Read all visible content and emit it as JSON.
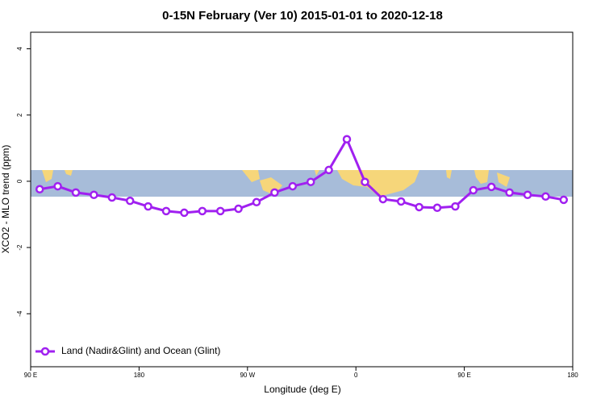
{
  "chart_data": {
    "type": "line",
    "title": "0-15N February (Ver 10)   2015-01-01 to 2020-12-18",
    "x_label": "Longitude (deg E)",
    "y_label": "XCO2 - MLO trend (ppm)",
    "x": [
      97.5,
      112.5,
      127.5,
      142.5,
      157.5,
      172.5,
      187.5,
      202.5,
      217.5,
      232.5,
      247.5,
      262.5,
      277.5,
      292.5,
      307.5,
      322.5,
      337.5,
      352.5,
      367.5,
      382.5,
      397.5,
      412.5,
      427.5,
      442.5,
      457.5,
      472.5,
      487.5,
      502.5,
      517.5,
      532.5
    ],
    "series": [
      {
        "name": "Land (Nadir&Glint) and Ocean (Glint)",
        "color": "#a020f0",
        "values": [
          -0.24,
          -0.15,
          -0.34,
          -0.41,
          -0.49,
          -0.59,
          -0.76,
          -0.9,
          -0.95,
          -0.9,
          -0.9,
          -0.83,
          -0.63,
          -0.34,
          -0.15,
          -0.02,
          0.34,
          1.27,
          -0.02,
          -0.54,
          -0.61,
          -0.78,
          -0.8,
          -0.76,
          -0.27,
          -0.17,
          -0.34,
          -0.41,
          -0.46,
          -0.56
        ]
      }
    ],
    "xlim": [
      90,
      540
    ],
    "xticks": [
      {
        "value": 90,
        "label": "90 E"
      },
      {
        "value": 180,
        "label": "180"
      },
      {
        "value": 270,
        "label": "90 W"
      },
      {
        "value": 360,
        "label": "0"
      },
      {
        "value": 450,
        "label": "90 E"
      },
      {
        "value": 540,
        "label": "180"
      }
    ],
    "ylim": [
      -5.6,
      4.5
    ],
    "yticks": [
      -4,
      -2,
      0,
      2,
      4
    ],
    "legend": "lower left"
  }
}
